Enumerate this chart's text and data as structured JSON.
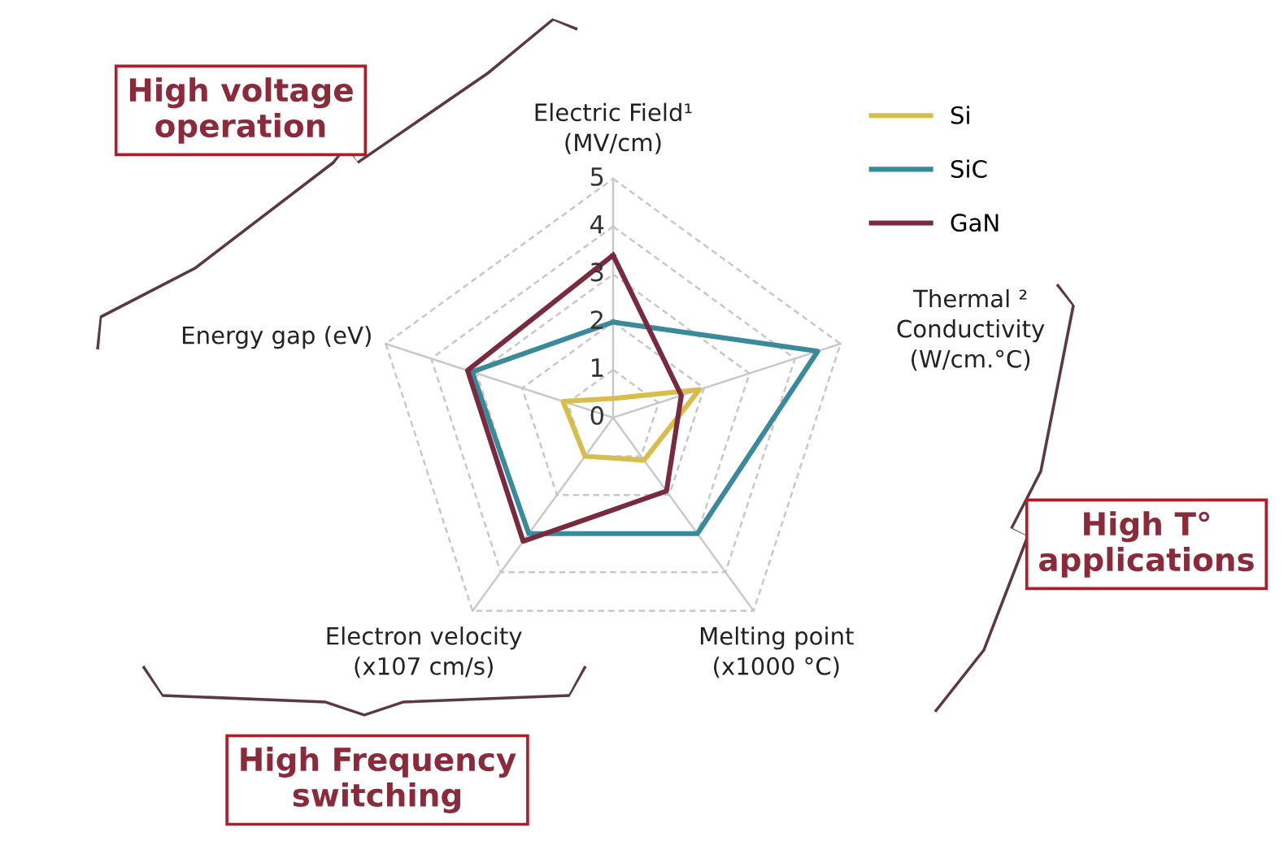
{
  "chart_data": {
    "type": "radar",
    "categories": [
      "Electric Field¹\n(MV/cm)",
      "Thermal ²\nConductivity\n(W/cm.°C)",
      "Melting point\n(x1000 °C)",
      "Electron velocity\n(x107 cm/s)",
      "Energy gap (eV)"
    ],
    "series": [
      {
        "name": "Si",
        "color": "#d9bd4a",
        "values": [
          0.4,
          1.9,
          1.1,
          1.0,
          1.1
        ]
      },
      {
        "name": "SiC",
        "color": "#3a8a9a",
        "values": [
          2.0,
          4.5,
          3.0,
          3.0,
          3.1
        ]
      },
      {
        "name": "GaN",
        "color": "#7a2a3e",
        "values": [
          3.4,
          1.5,
          1.9,
          3.2,
          3.2
        ]
      }
    ],
    "ylim": [
      0,
      5
    ],
    "yticks": [
      0,
      1,
      2,
      3,
      4,
      5
    ],
    "grid": true,
    "legend": "top right",
    "marker": "none",
    "line_style": "solid",
    "annotations": [
      "High voltage\noperation",
      "High T°\napplications",
      "High Frequency\nswitching"
    ]
  }
}
